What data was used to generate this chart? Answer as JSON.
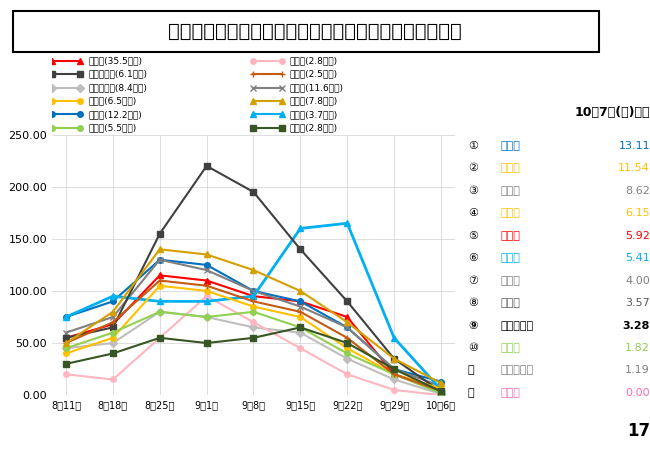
{
  "title": "県内１２市の直近１週間の１０万人当たり陽性者数推移",
  "date_label": "10月7日(木)時点",
  "x_labels": [
    "8月11日",
    "8月18日",
    "8月25日",
    "9月1日",
    "9月8日",
    "9月15日",
    "9月22日",
    "9月29日",
    "10月6日"
  ],
  "ylim": [
    0,
    250
  ],
  "yticks": [
    0.0,
    50.0,
    100.0,
    150.0,
    200.0,
    250.0
  ],
  "page_number": "17",
  "ranking": [
    {
      "rank": 1,
      "name": "橿原市",
      "value": 13.11,
      "color": "#0070c0",
      "bold": false
    },
    {
      "rank": 2,
      "name": "香芝市",
      "value": 11.54,
      "color": "#ffc000",
      "bold": false
    },
    {
      "rank": 3,
      "name": "生駒市",
      "value": 8.62,
      "color": "#808080",
      "bold": false
    },
    {
      "rank": 4,
      "name": "天理市",
      "value": 6.15,
      "color": "#ffc000",
      "bold": false
    },
    {
      "rank": 5,
      "name": "奈良市",
      "value": 5.92,
      "color": "#ff0000",
      "bold": false,
      "underline": true
    },
    {
      "rank": 6,
      "name": "葛城市",
      "value": 5.41,
      "color": "#00b0f0",
      "bold": false
    },
    {
      "rank": 7,
      "name": "御所市",
      "value": 4.0,
      "color": "#7f7f7f",
      "bold": false
    },
    {
      "rank": 8,
      "name": "宇陀市",
      "value": 3.57,
      "color": "#595959",
      "bold": false
    },
    {
      "rank": 9,
      "name": "大和高田市",
      "value": 3.28,
      "color": "#000000",
      "bold": true
    },
    {
      "rank": 10,
      "name": "桜井市",
      "value": 1.82,
      "color": "#92d050",
      "bold": false
    },
    {
      "rank": 11,
      "name": "大和郡山市",
      "value": 1.19,
      "color": "#808080",
      "bold": false
    },
    {
      "rank": 12,
      "name": "五條市",
      "value": 0.0,
      "color": "#ff69b4",
      "bold": false
    }
  ],
  "series": {
    "奈良市": {
      "color": "#ff0000",
      "marker": "^",
      "linewidth": 1.5,
      "legend": "奈良市(35.5万人)",
      "data": [
        55,
        68,
        115,
        110,
        95,
        90,
        75,
        20,
        6
      ]
    },
    "大和郡山市": {
      "color": "#bebebe",
      "marker": "D",
      "linewidth": 1.5,
      "legend": "大和郡山市(8.4万人)",
      "data": [
        45,
        50,
        80,
        75,
        65,
        60,
        35,
        15,
        1.2
      ]
    },
    "橿原市": {
      "color": "#0070c0",
      "marker": "o",
      "linewidth": 1.5,
      "legend": "橿原市(12.2万人)",
      "data": [
        75,
        90,
        130,
        125,
        100,
        90,
        65,
        25,
        13
      ]
    },
    "五條市": {
      "color": "#ffb6c1",
      "marker": "o",
      "linewidth": 1.5,
      "legend": "五條市(2.8万人)",
      "data": [
        20,
        15,
        55,
        95,
        70,
        45,
        20,
        5,
        0
      ]
    },
    "生駒市": {
      "color": "#808080",
      "marker": "x",
      "linewidth": 1.5,
      "legend": "生駒市(11.6万人)",
      "data": [
        60,
        75,
        130,
        120,
        100,
        85,
        65,
        25,
        8.6
      ]
    },
    "葛城市": {
      "color": "#00b0f0",
      "marker": "^",
      "linewidth": 2.0,
      "legend": "葛城市(3.7万人)",
      "data": [
        75,
        95,
        90,
        90,
        95,
        160,
        165,
        55,
        5.4
      ]
    },
    "大和高田市": {
      "color": "#404040",
      "marker": "s",
      "linewidth": 1.5,
      "legend": "大和高田市(6.1万人)",
      "data": [
        55,
        65,
        155,
        220,
        195,
        140,
        90,
        35,
        3.3
      ]
    },
    "天理市": {
      "color": "#ffc000",
      "marker": "o",
      "linewidth": 1.5,
      "legend": "天理市(6.5万人)",
      "data": [
        40,
        55,
        105,
        100,
        85,
        75,
        45,
        20,
        6.2
      ]
    },
    "桜井市": {
      "color": "#92d050",
      "marker": "o",
      "linewidth": 1.5,
      "legend": "桜井市(5.5万人)",
      "data": [
        45,
        60,
        80,
        75,
        80,
        65,
        40,
        20,
        1.8
      ]
    },
    "御所市": {
      "color": "#c55a11",
      "marker": "+",
      "linewidth": 1.5,
      "legend": "御所市(2.5万人)",
      "data": [
        50,
        70,
        110,
        105,
        90,
        80,
        55,
        20,
        4.0
      ]
    },
    "香芝市": {
      "color": "#d4a000",
      "marker": "^",
      "linewidth": 1.5,
      "legend": "香芝市(7.8万人)",
      "data": [
        50,
        80,
        140,
        135,
        120,
        100,
        70,
        35,
        11.5
      ]
    },
    "宇陀市": {
      "color": "#375623",
      "marker": "s",
      "linewidth": 1.5,
      "legend": "宇陀市(2.8万人)",
      "data": [
        30,
        40,
        55,
        50,
        55,
        65,
        50,
        25,
        3.6
      ]
    }
  }
}
